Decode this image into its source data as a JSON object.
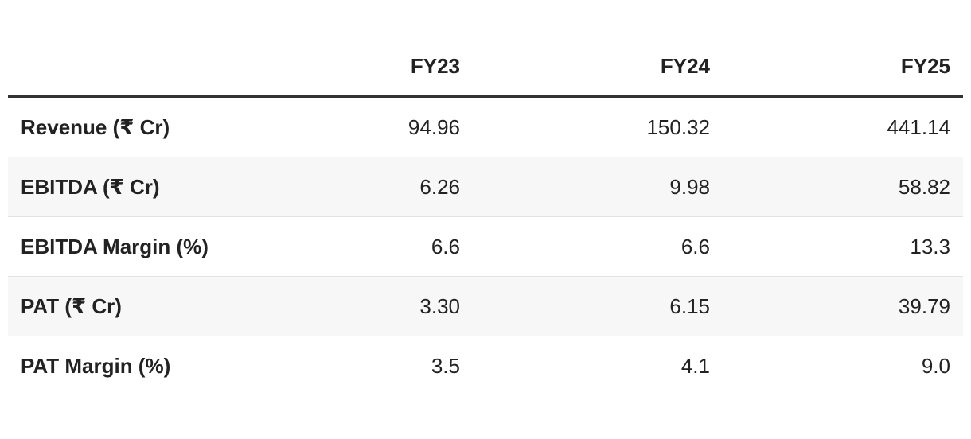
{
  "table": {
    "columns": [
      "FY23",
      "FY24",
      "FY25"
    ],
    "rows": [
      [
        "Revenue (₹ Cr)",
        "94.96",
        "150.32",
        "441.14"
      ],
      [
        "EBITDA (₹ Cr)",
        "6.26",
        "9.98",
        "58.82"
      ],
      [
        "EBITDA Margin (%)",
        "6.6",
        "6.6",
        "13.3"
      ],
      [
        "PAT (₹ Cr)",
        "3.30",
        "6.15",
        "39.79"
      ],
      [
        "PAT Margin (%)",
        "3.5",
        "4.1",
        "9.0"
      ]
    ]
  }
}
